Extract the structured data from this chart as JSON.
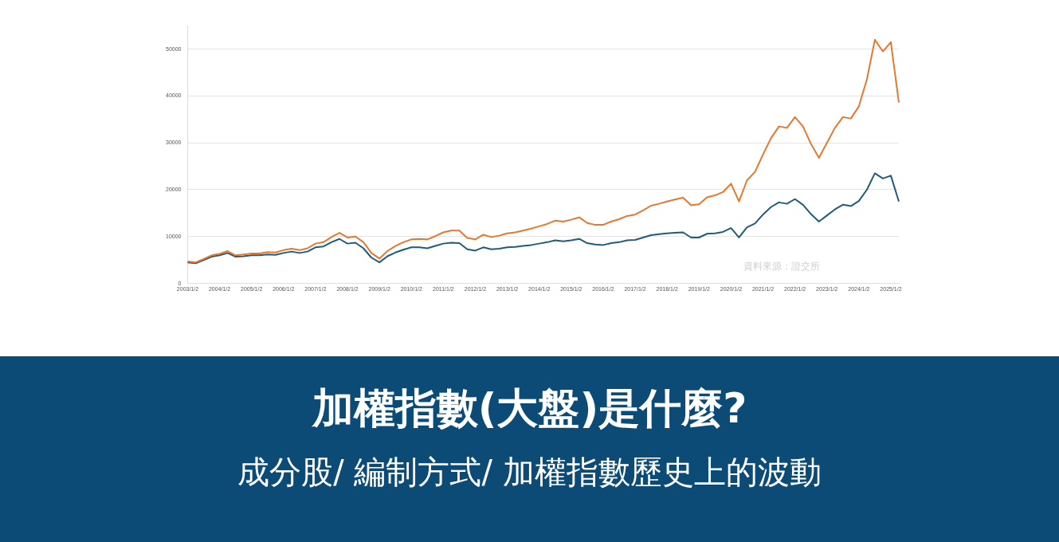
{
  "chart_data": {
    "type": "line",
    "title": "加權指數(大盤)是什麼?",
    "subtitle": "成分股/ 編制方式/ 加權指數歷史上的波動",
    "categories": [
      "2003/1/2",
      null,
      null,
      null,
      "2004/1/2",
      null,
      null,
      null,
      "2005/1/2",
      null,
      null,
      null,
      "2006/1/2",
      null,
      null,
      null,
      "2007/1/2",
      null,
      null,
      null,
      "2008/1/2",
      null,
      null,
      null,
      "2009/1/2",
      null,
      null,
      null,
      "2010/1/2",
      null,
      null,
      null,
      "2011/1/2",
      null,
      null,
      null,
      "2012/1/2",
      null,
      null,
      null,
      "2013/1/2",
      null,
      null,
      null,
      "2014/1/2",
      null,
      null,
      null,
      "2015/1/2",
      null,
      null,
      null,
      "2016/1/2",
      null,
      null,
      null,
      "2017/1/2",
      null,
      null,
      null,
      "2018/1/2",
      null,
      null,
      null,
      "2019/1/2",
      null,
      null,
      null,
      "2020/1/2",
      null,
      null,
      null,
      "2021/1/2",
      null,
      null,
      null,
      "2022/1/2",
      null,
      null,
      null,
      "2023/1/2",
      null,
      null,
      null,
      "2024/1/2",
      null,
      null,
      null,
      "2025/1/2",
      null
    ],
    "series": [
      {
        "color": "#e8772e",
        "values": [
          4700,
          4500,
          5200,
          6000,
          6300,
          6900,
          6000,
          6200,
          6400,
          6400,
          6700,
          6600,
          7100,
          7400,
          7100,
          7500,
          8500,
          8800,
          9900,
          10800,
          9800,
          10000,
          8800,
          6500,
          5300,
          6900,
          8000,
          8800,
          9400,
          9500,
          9400,
          10100,
          10900,
          11300,
          11300,
          9700,
          9400,
          10400,
          9900,
          10200,
          10700,
          10900,
          11300,
          11700,
          12200,
          12700,
          13400,
          13200,
          13600,
          14100,
          12900,
          12500,
          12500,
          13200,
          13700,
          14400,
          14700,
          15600,
          16600,
          17000,
          17500,
          17900,
          18300,
          16700,
          16900,
          18400,
          18800,
          19500,
          21300,
          17500,
          22000,
          23800,
          27500,
          31000,
          33500,
          33200,
          35500,
          33500,
          29800,
          26800,
          30000,
          33200,
          35500,
          35200,
          37800,
          43500,
          52000,
          49500,
          51500,
          38600
        ]
      },
      {
        "color": "#1f5c7a",
        "values": [
          4500,
          4300,
          5000,
          5700,
          6000,
          6500,
          5700,
          5800,
          6000,
          6000,
          6200,
          6100,
          6500,
          6800,
          6500,
          6800,
          7700,
          7900,
          8800,
          9500,
          8500,
          8700,
          7500,
          5500,
          4500,
          5800,
          6600,
          7200,
          7700,
          7700,
          7500,
          8000,
          8500,
          8700,
          8600,
          7300,
          7000,
          7700,
          7300,
          7400,
          7700,
          7800,
          8000,
          8200,
          8500,
          8800,
          9200,
          9000,
          9200,
          9500,
          8600,
          8300,
          8200,
          8600,
          8800,
          9200,
          9300,
          9800,
          10300,
          10500,
          10700,
          10800,
          10900,
          9800,
          9800,
          10600,
          10700,
          11000,
          11800,
          9800,
          12000,
          12800,
          14700,
          16300,
          17300,
          17000,
          18000,
          16800,
          14800,
          13200,
          14500,
          15800,
          16800,
          16500,
          17600,
          20000,
          23500,
          22400,
          23000,
          17500
        ]
      }
    ],
    "ylim": [
      0,
      55000
    ],
    "yticks": [
      0,
      10000,
      20000,
      30000,
      40000,
      50000
    ],
    "grid": "y",
    "legend": false,
    "marker": "none",
    "line_style": "solid",
    "annotations": [
      "資料來源：證交所"
    ]
  }
}
